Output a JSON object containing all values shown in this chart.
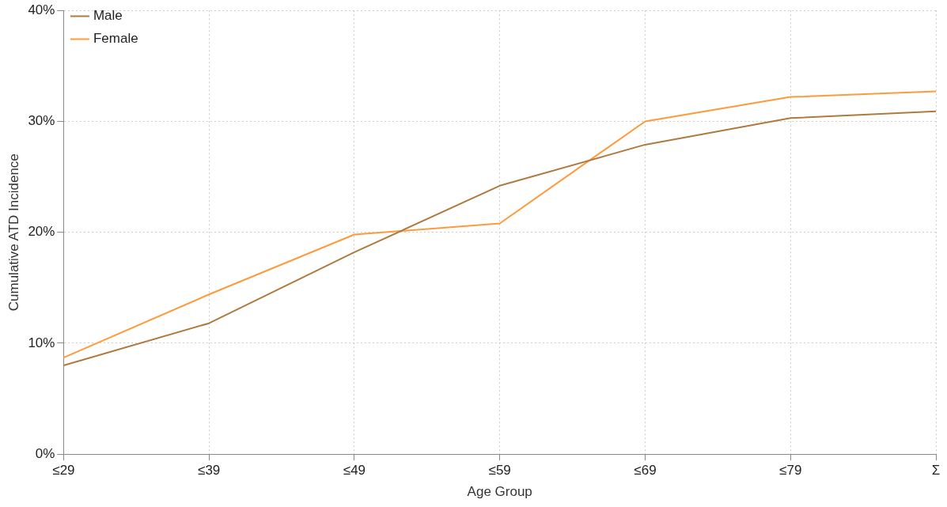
{
  "chart_data": {
    "type": "line",
    "xlabel": "Age Group",
    "ylabel": "Cumulative ATD Incidence",
    "categories": [
      "≤29",
      "≤39",
      "≤49",
      "≤59",
      "≤69",
      "≤79",
      "Σ"
    ],
    "series": [
      {
        "name": "Male",
        "color": "#b07a3f",
        "values": [
          8.0,
          11.8,
          18.2,
          24.2,
          27.9,
          30.3,
          30.9
        ]
      },
      {
        "name": "Female",
        "color": "#ff9a3c",
        "values": [
          8.7,
          14.4,
          19.8,
          20.8,
          30.0,
          32.2,
          32.7
        ]
      }
    ],
    "ylim": [
      0,
      40
    ],
    "yticks": [
      {
        "value": 0,
        "label": "0%"
      },
      {
        "value": 10,
        "label": "10%"
      },
      {
        "value": 20,
        "label": "20%"
      },
      {
        "value": 30,
        "label": "30%"
      },
      {
        "value": 40,
        "label": "40%"
      }
    ],
    "grid": true,
    "legend": "top left",
    "marker": "none",
    "line_style": "solid"
  }
}
